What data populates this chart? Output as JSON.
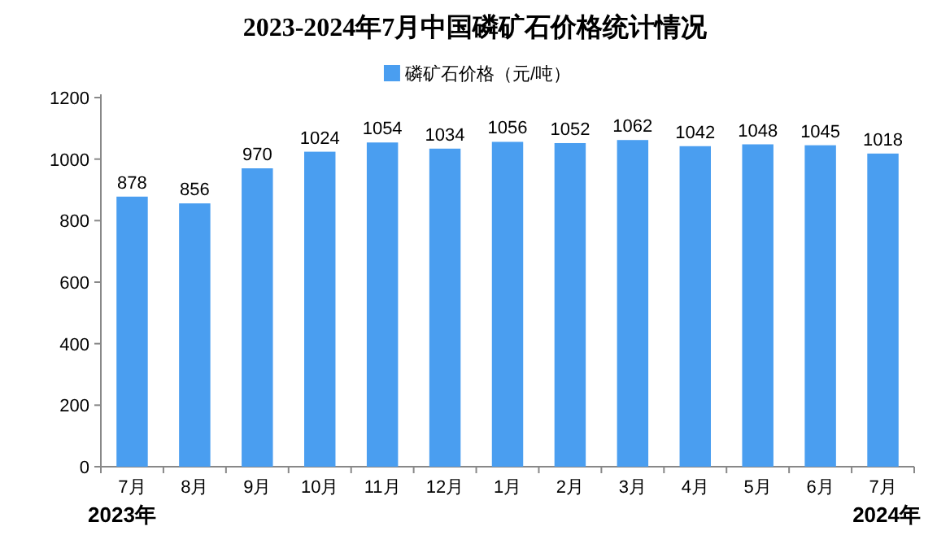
{
  "chart_data": {
    "type": "bar",
    "title": "2023-2024年7月中国磷矿石价格统计情况",
    "categories": [
      "7月",
      "8月",
      "9月",
      "10月",
      "11月",
      "12月",
      "1月",
      "2月",
      "3月",
      "4月",
      "5月",
      "6月",
      "7月"
    ],
    "series": [
      {
        "name": "磷矿石价格（元/吨）",
        "color": "#4a9ef0",
        "values": [
          878,
          856,
          970,
          1024,
          1054,
          1034,
          1056,
          1052,
          1062,
          1042,
          1048,
          1045,
          1018
        ]
      }
    ],
    "ylim": [
      0,
      1200
    ],
    "yticks": [
      0,
      200,
      400,
      600,
      800,
      1000,
      1200
    ],
    "data_labels": true,
    "legend": "top",
    "annotations": [
      "2023年",
      "2024年"
    ]
  }
}
